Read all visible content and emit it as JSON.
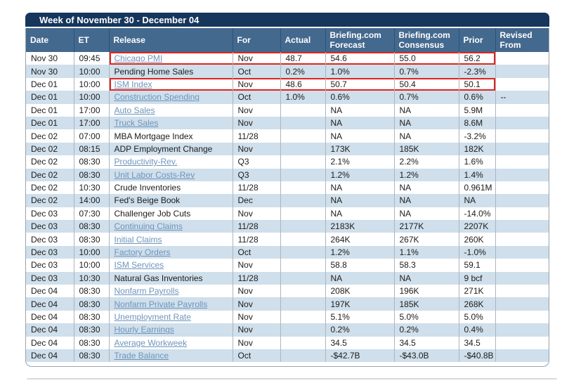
{
  "calendar": {
    "title": "Week of November 30 - December 04",
    "columns": [
      {
        "id": "date",
        "label": "Date"
      },
      {
        "id": "et",
        "label": "ET"
      },
      {
        "id": "release",
        "label": "Release"
      },
      {
        "id": "for",
        "label": "For"
      },
      {
        "id": "actual",
        "label": "Actual"
      },
      {
        "id": "forecast",
        "label": "Briefing.com Forecast"
      },
      {
        "id": "consensus",
        "label": "Briefing.com Consensus"
      },
      {
        "id": "prior",
        "label": "Prior"
      },
      {
        "id": "revised",
        "label": "Revised From"
      }
    ],
    "rows": [
      {
        "date": "Nov 30",
        "et": "09:45",
        "release": "Chicago PMI",
        "link": true,
        "for": "Nov",
        "actual": "48.7",
        "forecast": "54.6",
        "consensus": "55.0",
        "prior": "56.2",
        "revised": "",
        "highlighted": true
      },
      {
        "date": "Nov 30",
        "et": "10:00",
        "release": "Pending Home Sales",
        "link": false,
        "for": "Oct",
        "actual": "0.2%",
        "forecast": "1.0%",
        "consensus": "0.7%",
        "prior": "-2.3%",
        "revised": "",
        "highlighted": false
      },
      {
        "date": "Dec 01",
        "et": "10:00",
        "release": "ISM Index",
        "link": true,
        "for": "Nov",
        "actual": "48.6",
        "forecast": "50.7",
        "consensus": "50.4",
        "prior": "50.1",
        "revised": "",
        "highlighted": true
      },
      {
        "date": "Dec 01",
        "et": "10:00",
        "release": "Construction Spending",
        "link": true,
        "for": "Oct",
        "actual": "1.0%",
        "forecast": "0.6%",
        "consensus": "0.7%",
        "prior": "0.6%",
        "revised": "--",
        "highlighted": false
      },
      {
        "date": "Dec 01",
        "et": "17:00",
        "release": "Auto Sales",
        "link": true,
        "for": "Nov",
        "actual": "",
        "forecast": "NA",
        "consensus": "NA",
        "prior": "5.9M",
        "revised": "",
        "highlighted": false
      },
      {
        "date": "Dec 01",
        "et": "17:00",
        "release": "Truck Sales",
        "link": true,
        "for": "Nov",
        "actual": "",
        "forecast": "NA",
        "consensus": "NA",
        "prior": "8.6M",
        "revised": "",
        "highlighted": false
      },
      {
        "date": "Dec 02",
        "et": "07:00",
        "release": "MBA Mortgage Index",
        "link": false,
        "for": "11/28",
        "actual": "",
        "forecast": "NA",
        "consensus": "NA",
        "prior": "-3.2%",
        "revised": "",
        "highlighted": false
      },
      {
        "date": "Dec 02",
        "et": "08:15",
        "release": "ADP Employment Change",
        "link": false,
        "for": "Nov",
        "actual": "",
        "forecast": "173K",
        "consensus": "185K",
        "prior": "182K",
        "revised": "",
        "highlighted": false
      },
      {
        "date": "Dec 02",
        "et": "08:30",
        "release": "Productivity-Rev.",
        "link": true,
        "for": "Q3",
        "actual": "",
        "forecast": "2.1%",
        "consensus": "2.2%",
        "prior": "1.6%",
        "revised": "",
        "highlighted": false
      },
      {
        "date": "Dec 02",
        "et": "08:30",
        "release": "Unit Labor Costs-Rev",
        "link": true,
        "for": "Q3",
        "actual": "",
        "forecast": "1.2%",
        "consensus": "1.2%",
        "prior": "1.4%",
        "revised": "",
        "highlighted": false
      },
      {
        "date": "Dec 02",
        "et": "10:30",
        "release": "Crude Inventories",
        "link": false,
        "for": "11/28",
        "actual": "",
        "forecast": "NA",
        "consensus": "NA",
        "prior": "0.961M",
        "revised": "",
        "highlighted": false
      },
      {
        "date": "Dec 02",
        "et": "14:00",
        "release": "Fed's Beige Book",
        "link": false,
        "for": "Dec",
        "actual": "",
        "forecast": "NA",
        "consensus": "NA",
        "prior": "NA",
        "revised": "",
        "highlighted": false
      },
      {
        "date": "Dec 03",
        "et": "07:30",
        "release": "Challenger Job Cuts",
        "link": false,
        "for": "Nov",
        "actual": "",
        "forecast": "NA",
        "consensus": "NA",
        "prior": "-14.0%",
        "revised": "",
        "highlighted": false
      },
      {
        "date": "Dec 03",
        "et": "08:30",
        "release": "Continuing Claims",
        "link": true,
        "for": "11/28",
        "actual": "",
        "forecast": "2183K",
        "consensus": "2177K",
        "prior": "2207K",
        "revised": "",
        "highlighted": false
      },
      {
        "date": "Dec 03",
        "et": "08:30",
        "release": "Initial Claims",
        "link": true,
        "for": "11/28",
        "actual": "",
        "forecast": "264K",
        "consensus": "267K",
        "prior": "260K",
        "revised": "",
        "highlighted": false
      },
      {
        "date": "Dec 03",
        "et": "10:00",
        "release": "Factory Orders",
        "link": true,
        "for": "Oct",
        "actual": "",
        "forecast": "1.2%",
        "consensus": "1.1%",
        "prior": "-1.0%",
        "revised": "",
        "highlighted": false
      },
      {
        "date": "Dec 03",
        "et": "10:00",
        "release": "ISM Services",
        "link": true,
        "for": "Nov",
        "actual": "",
        "forecast": "58.8",
        "consensus": "58.3",
        "prior": "59.1",
        "revised": "",
        "highlighted": false
      },
      {
        "date": "Dec 03",
        "et": "10:30",
        "release": "Natural Gas Inventories",
        "link": false,
        "for": "11/28",
        "actual": "",
        "forecast": "NA",
        "consensus": "NA",
        "prior": "9 bcf",
        "revised": "",
        "highlighted": false
      },
      {
        "date": "Dec 04",
        "et": "08:30",
        "release": "Nonfarm Payrolls",
        "link": true,
        "for": "Nov",
        "actual": "",
        "forecast": "208K",
        "consensus": "196K",
        "prior": "271K",
        "revised": "",
        "highlighted": false
      },
      {
        "date": "Dec 04",
        "et": "08:30",
        "release": "Nonfarm Private Payrolls",
        "link": true,
        "for": "Nov",
        "actual": "",
        "forecast": "197K",
        "consensus": "185K",
        "prior": "268K",
        "revised": "",
        "highlighted": false
      },
      {
        "date": "Dec 04",
        "et": "08:30",
        "release": "Unemployment Rate",
        "link": true,
        "for": "Nov",
        "actual": "",
        "forecast": "5.1%",
        "consensus": "5.0%",
        "prior": "5.0%",
        "revised": "",
        "highlighted": false
      },
      {
        "date": "Dec 04",
        "et": "08:30",
        "release": "Hourly Earnings",
        "link": true,
        "for": "Nov",
        "actual": "",
        "forecast": "0.2%",
        "consensus": "0.2%",
        "prior": "0.4%",
        "revised": "",
        "highlighted": false
      },
      {
        "date": "Dec 04",
        "et": "08:30",
        "release": "Average Workweek",
        "link": true,
        "for": "Nov",
        "actual": "",
        "forecast": "34.5",
        "consensus": "34.5",
        "prior": "34.5",
        "revised": "",
        "highlighted": false
      },
      {
        "date": "Dec 04",
        "et": "08:30",
        "release": "Trade Balance",
        "link": true,
        "for": "Oct",
        "actual": "",
        "forecast": "-$42.7B",
        "consensus": "-$43.0B",
        "prior": "-$40.8B",
        "revised": "",
        "highlighted": false
      }
    ],
    "colors": {
      "title_bar_bg": "#16365c",
      "title_text": "#ffffff",
      "header_bg": "#44698f",
      "header_text": "#ffffff",
      "row_bg": "#ffffff",
      "row_alt_bg": "#cfdfeb",
      "body_text": "#1c1c1c",
      "link_color": "#6e94bc",
      "highlight_border": "#e0251d",
      "grid_line": "#a9b6c1"
    }
  }
}
